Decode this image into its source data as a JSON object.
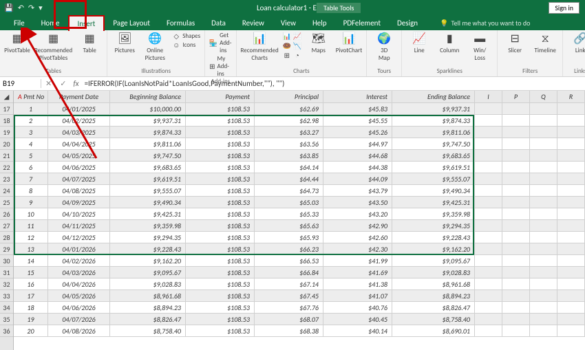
{
  "app": {
    "doc_title": "Loan calculator1 - Excel",
    "signin": "Sign in",
    "ctx_tools": "Table Tools"
  },
  "tabs": [
    "File",
    "Home",
    "Insert",
    "Page Layout",
    "Formulas",
    "Data",
    "Review",
    "View",
    "Help",
    "PDFelement",
    "Design"
  ],
  "tellme": "Tell me what you want to do",
  "ribbon": {
    "tables": {
      "pivot": "PivotTable",
      "rec": "Recommended\nPivotTables",
      "table": "Table",
      "label": "Tables"
    },
    "illus": {
      "pics": "Pictures",
      "online": "Online\nPictures",
      "shapes": "Shapes",
      "icons": "Icons",
      "label": "Illustrations"
    },
    "addins": {
      "get": "Get Add-ins",
      "my": "My Add-ins",
      "label": "Add-ins"
    },
    "charts": {
      "rec": "Recommended\nCharts",
      "maps": "Maps",
      "pc": "PivotChart",
      "label": "Charts"
    },
    "tours": {
      "map3d": "3D\nMap",
      "label": "Tours"
    },
    "spark": {
      "line": "Line",
      "col": "Column",
      "wl": "Win/\nLoss",
      "label": "Sparklines"
    },
    "filters": {
      "slicer": "Slicer",
      "tl": "Timeline",
      "label": "Filters"
    },
    "links": {
      "link": "Link",
      "label": "Links"
    },
    "text": {
      "text": "Text",
      "label": ""
    }
  },
  "formula": {
    "cellref": "B19",
    "fx": "fx",
    "text": "=IFERROR(IF(LoanIsNotPaid*LoanIsGood,PaymentNumber,\"\"), \"\")"
  },
  "headers": [
    "Pmt No",
    "Payment Date",
    "Beginning Balance",
    "Payment",
    "Principal",
    "Interest",
    "Ending  Balance"
  ],
  "extHeaders": [
    "I",
    "P",
    "Q",
    "R"
  ],
  "rowNums": [
    17,
    18,
    19,
    20,
    21,
    22,
    23,
    24,
    25,
    26,
    27,
    28,
    29,
    30,
    31,
    32,
    33,
    34,
    35,
    36
  ],
  "rows": [
    [
      "1",
      "04/01/2025",
      "$10,000.00",
      "$108.53",
      "$62.69",
      "$45.83",
      "$9,937.31"
    ],
    [
      "2",
      "04/02/2025",
      "$9,937.31",
      "$108.53",
      "$62.98",
      "$45.55",
      "$9,874.33"
    ],
    [
      "3",
      "04/03/2025",
      "$9,874.33",
      "$108.53",
      "$63.27",
      "$45.26",
      "$9,811.06"
    ],
    [
      "4",
      "04/04/2025",
      "$9,811.06",
      "$108.53",
      "$63.56",
      "$44.97",
      "$9,747.50"
    ],
    [
      "5",
      "04/05/2025",
      "$9,747.50",
      "$108.53",
      "$63.85",
      "$44.68",
      "$9,683.65"
    ],
    [
      "6",
      "04/06/2025",
      "$9,683.65",
      "$108.53",
      "$64.14",
      "$44.38",
      "$9,619.51"
    ],
    [
      "7",
      "04/07/2025",
      "$9,619.51",
      "$108.53",
      "$64.44",
      "$44.09",
      "$9,555.07"
    ],
    [
      "8",
      "04/08/2025",
      "$9,555.07",
      "$108.53",
      "$64.73",
      "$43.79",
      "$9,490.34"
    ],
    [
      "9",
      "04/09/2025",
      "$9,490.34",
      "$108.53",
      "$65.03",
      "$43.50",
      "$9,425.31"
    ],
    [
      "10",
      "04/10/2025",
      "$9,425.31",
      "$108.53",
      "$65.33",
      "$43.20",
      "$9,359.98"
    ],
    [
      "11",
      "04/11/2025",
      "$9,359.98",
      "$108.53",
      "$65.63",
      "$42.90",
      "$9,294.35"
    ],
    [
      "12",
      "04/12/2025",
      "$9,294.35",
      "$108.53",
      "$65.93",
      "$42.60",
      "$9,228.43"
    ],
    [
      "13",
      "04/01/2026",
      "$9,228.43",
      "$108.53",
      "$66.23",
      "$42.30",
      "$9,162.20"
    ],
    [
      "14",
      "04/02/2026",
      "$9,162.20",
      "$108.53",
      "$66.53",
      "$41.99",
      "$9,095.67"
    ],
    [
      "15",
      "04/03/2026",
      "$9,095.67",
      "$108.53",
      "$66.84",
      "$41.69",
      "$9,028.83"
    ],
    [
      "16",
      "04/04/2026",
      "$9,028.83",
      "$108.53",
      "$67.14",
      "$41.38",
      "$8,961.68"
    ],
    [
      "17",
      "04/05/2026",
      "$8,961.68",
      "$108.53",
      "$67.45",
      "$41.07",
      "$8,894.23"
    ],
    [
      "18",
      "04/06/2026",
      "$8,894.23",
      "$108.53",
      "$67.76",
      "$40.76",
      "$8,826.47"
    ],
    [
      "19",
      "04/07/2026",
      "$8,826.47",
      "$108.53",
      "$68.07",
      "$40.45",
      "$8,758.40"
    ],
    [
      "20",
      "04/08/2026",
      "$8,758.40",
      "$108.53",
      "$68.38",
      "$40.14",
      "$8,690.01"
    ]
  ],
  "style": {
    "green": "#0f7040",
    "red": "#c00000",
    "altRow": "#ededed",
    "selBorder": "#0f7040"
  }
}
